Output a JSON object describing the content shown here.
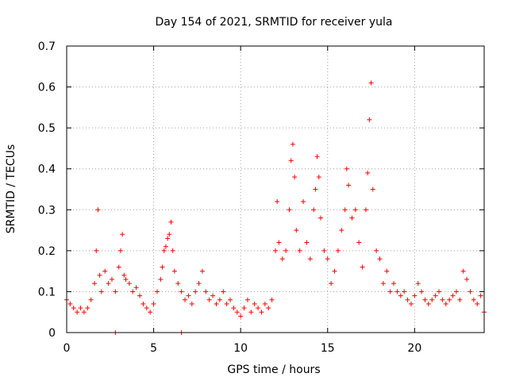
{
  "chart_data": {
    "type": "scatter",
    "title": "Day 154 of 2021, SRMTID for receiver yula",
    "xlabel": "GPS time / hours",
    "ylabel": "SRMTID / TECUs",
    "xlim": [
      0,
      24
    ],
    "ylim": [
      0,
      0.7
    ],
    "xticks": [
      0,
      5,
      10,
      15,
      20
    ],
    "xtick_labels": [
      "0",
      "5",
      "10",
      "15",
      "20"
    ],
    "yticks": [
      0,
      0.1,
      0.2,
      0.3,
      0.4,
      0.5,
      0.6,
      0.7
    ],
    "ytick_labels": [
      "0",
      "0.1",
      "0.2",
      "0.3",
      "0.4",
      "0.5",
      "0.6",
      "0.7"
    ],
    "grid": true,
    "marker": "+",
    "color": "#ff0000",
    "series": [
      {
        "name": "SRMTID",
        "x": [
          0.0,
          0.2,
          0.4,
          0.6,
          0.8,
          1.0,
          1.2,
          1.4,
          1.6,
          1.7,
          1.8,
          1.9,
          2.0,
          2.2,
          2.4,
          2.6,
          2.8,
          3.0,
          3.1,
          3.2,
          3.3,
          3.4,
          3.6,
          3.8,
          4.0,
          4.2,
          4.4,
          4.6,
          4.8,
          5.0,
          5.2,
          5.4,
          5.5,
          5.6,
          5.7,
          5.8,
          5.9,
          6.0,
          6.1,
          6.2,
          6.4,
          6.6,
          6.8,
          7.0,
          7.2,
          7.4,
          7.6,
          7.8,
          8.0,
          8.2,
          8.4,
          8.6,
          8.8,
          9.0,
          9.2,
          9.4,
          9.6,
          9.8,
          10.0,
          10.2,
          10.4,
          10.6,
          10.8,
          11.0,
          11.2,
          11.4,
          11.6,
          11.8,
          12.0,
          12.1,
          12.2,
          12.4,
          12.6,
          12.8,
          12.9,
          13.0,
          13.1,
          13.2,
          13.4,
          13.6,
          13.8,
          14.0,
          14.2,
          14.3,
          14.4,
          14.5,
          14.6,
          14.8,
          15.0,
          15.2,
          15.4,
          15.6,
          15.8,
          16.0,
          16.1,
          16.2,
          16.4,
          16.6,
          16.8,
          17.0,
          17.2,
          17.3,
          17.4,
          17.5,
          17.6,
          17.8,
          18.0,
          18.2,
          18.4,
          18.6,
          18.8,
          19.0,
          19.2,
          19.4,
          19.6,
          19.8,
          20.0,
          20.2,
          20.4,
          20.6,
          20.8,
          21.0,
          21.2,
          21.4,
          21.6,
          21.8,
          22.0,
          22.2,
          22.4,
          22.6,
          22.8,
          23.0,
          23.2,
          23.4,
          23.6,
          23.8,
          24.0
        ],
        "y": [
          0.08,
          0.07,
          0.06,
          0.05,
          0.06,
          0.05,
          0.06,
          0.08,
          0.12,
          0.2,
          0.3,
          0.14,
          0.1,
          0.15,
          0.12,
          0.13,
          0.1,
          0.16,
          0.2,
          0.24,
          0.14,
          0.13,
          0.12,
          0.1,
          0.11,
          0.09,
          0.07,
          0.06,
          0.05,
          0.07,
          0.1,
          0.13,
          0.16,
          0.2,
          0.21,
          0.23,
          0.24,
          0.27,
          0.2,
          0.15,
          0.12,
          0.1,
          0.08,
          0.09,
          0.07,
          0.1,
          0.12,
          0.15,
          0.1,
          0.08,
          0.09,
          0.07,
          0.08,
          0.1,
          0.07,
          0.08,
          0.06,
          0.05,
          0.04,
          0.06,
          0.08,
          0.05,
          0.07,
          0.06,
          0.05,
          0.07,
          0.06,
          0.08,
          0.2,
          0.32,
          0.22,
          0.18,
          0.2,
          0.3,
          0.42,
          0.46,
          0.38,
          0.25,
          0.2,
          0.32,
          0.22,
          0.18,
          0.3,
          0.35,
          0.43,
          0.38,
          0.28,
          0.2,
          0.18,
          0.12,
          0.15,
          0.2,
          0.25,
          0.3,
          0.4,
          0.36,
          0.28,
          0.3,
          0.22,
          0.16,
          0.3,
          0.39,
          0.52,
          0.61,
          0.35,
          0.2,
          0.18,
          0.12,
          0.15,
          0.1,
          0.12,
          0.1,
          0.09,
          0.1,
          0.08,
          0.07,
          0.09,
          0.12,
          0.1,
          0.08,
          0.07,
          0.08,
          0.09,
          0.1,
          0.08,
          0.07,
          0.08,
          0.09,
          0.1,
          0.08,
          0.15,
          0.13,
          0.1,
          0.08,
          0.07,
          0.09,
          0.05
        ]
      }
    ],
    "zero_markers_x": [
      2.8,
      6.6
    ]
  }
}
